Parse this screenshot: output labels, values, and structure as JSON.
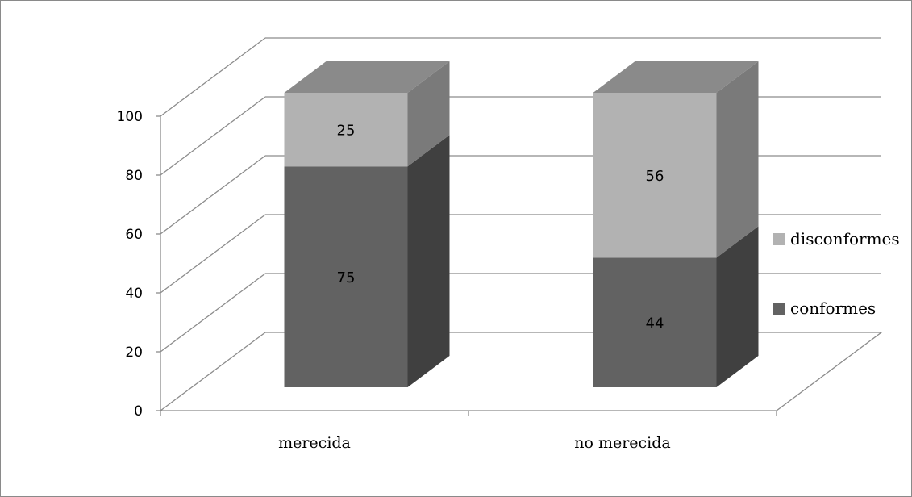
{
  "chart_data": {
    "type": "bar",
    "stacked": true,
    "three_d": true,
    "categories": [
      "merecida",
      "no merecida"
    ],
    "series": [
      {
        "name": "conformes",
        "values": [
          75,
          44
        ],
        "color": "#626262"
      },
      {
        "name": "disconformes",
        "values": [
          25,
          56
        ],
        "color": "#b2b2b2"
      }
    ],
    "ylim": [
      0,
      100
    ],
    "yticks": [
      0,
      20,
      40,
      60,
      80,
      100
    ],
    "ytick_labels": [
      "0",
      "20",
      "40",
      "60",
      "80",
      "100"
    ],
    "title": "",
    "xlabel": "",
    "ylabel": "",
    "grid": true,
    "legend_position": "right"
  },
  "colors": {
    "grid": "#8c8c8c",
    "axis": "#8c8c8c",
    "top_face": "#8a8a8a",
    "conformes_side": "#404040",
    "disconformes_side": "#7a7a7a",
    "border": "#8a8a8a"
  }
}
